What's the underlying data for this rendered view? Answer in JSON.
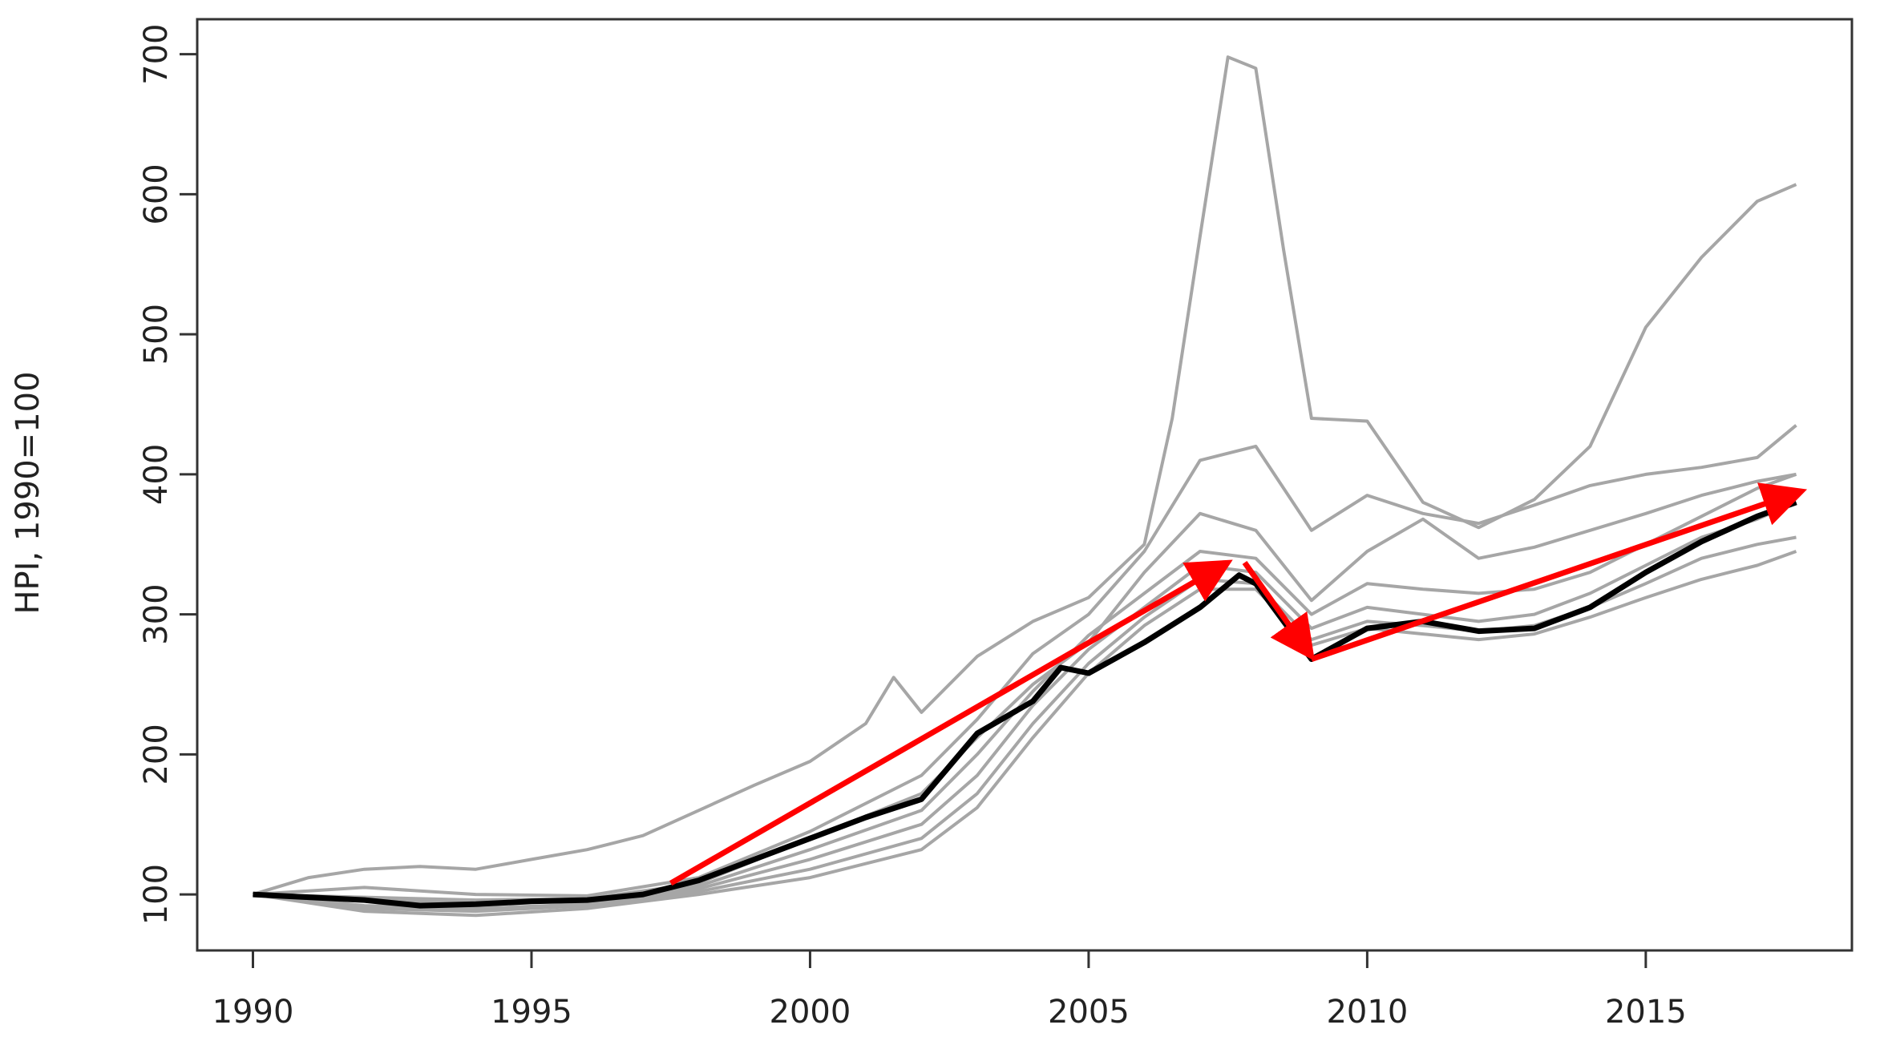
{
  "chart_data": {
    "type": "line",
    "title": "",
    "xlabel": "",
    "ylabel": "HPI, 1990=100",
    "xlim": [
      1989,
      2018.7
    ],
    "ylim": [
      60,
      725
    ],
    "x_ticks": [
      1990,
      1995,
      2000,
      2005,
      2010,
      2015
    ],
    "y_ticks": [
      100,
      200,
      300,
      400,
      500,
      600,
      700
    ],
    "grid": false,
    "legend": "none",
    "colors": {
      "regional": "#a6a6a6",
      "aggregate": "#000000",
      "arrows": "#ff0000"
    },
    "series": [
      {
        "role": "regional",
        "points": [
          [
            1990,
            100
          ],
          [
            1991,
            112
          ],
          [
            1992,
            118
          ],
          [
            1993,
            120
          ],
          [
            1994,
            118
          ],
          [
            1995,
            125
          ],
          [
            1996,
            132
          ],
          [
            1997,
            142
          ],
          [
            1998,
            160
          ],
          [
            1999,
            178
          ],
          [
            2000,
            195
          ],
          [
            2001,
            222
          ],
          [
            2001.5,
            255
          ],
          [
            2002,
            230
          ],
          [
            2003,
            270
          ],
          [
            2004,
            295
          ],
          [
            2005,
            312
          ],
          [
            2006,
            350
          ],
          [
            2006.5,
            440
          ],
          [
            2007,
            570
          ],
          [
            2007.5,
            698
          ],
          [
            2008,
            690
          ],
          [
            2008.5,
            560
          ],
          [
            2009,
            440
          ],
          [
            2010,
            438
          ],
          [
            2011,
            380
          ],
          [
            2012,
            362
          ],
          [
            2013,
            382
          ],
          [
            2014,
            420
          ],
          [
            2015,
            505
          ],
          [
            2016,
            555
          ],
          [
            2017,
            595
          ],
          [
            2017.7,
            607
          ]
        ]
      },
      {
        "role": "regional",
        "points": [
          [
            1990,
            100
          ],
          [
            1992,
            105
          ],
          [
            1994,
            100
          ],
          [
            1996,
            99
          ],
          [
            1998,
            112
          ],
          [
            2000,
            145
          ],
          [
            2002,
            185
          ],
          [
            2003,
            225
          ],
          [
            2004,
            272
          ],
          [
            2005,
            300
          ],
          [
            2006,
            345
          ],
          [
            2007,
            410
          ],
          [
            2008,
            420
          ],
          [
            2009,
            360
          ],
          [
            2010,
            385
          ],
          [
            2011,
            372
          ],
          [
            2012,
            365
          ],
          [
            2013,
            378
          ],
          [
            2014,
            392
          ],
          [
            2015,
            400
          ],
          [
            2016,
            405
          ],
          [
            2017,
            412
          ],
          [
            2017.7,
            435
          ]
        ]
      },
      {
        "role": "regional",
        "points": [
          [
            1990,
            100
          ],
          [
            1992,
            98
          ],
          [
            1994,
            96
          ],
          [
            1996,
            97
          ],
          [
            1998,
            108
          ],
          [
            2000,
            140
          ],
          [
            2002,
            172
          ],
          [
            2003,
            212
          ],
          [
            2004,
            250
          ],
          [
            2005,
            280
          ],
          [
            2006,
            330
          ],
          [
            2007,
            372
          ],
          [
            2008,
            360
          ],
          [
            2009,
            310
          ],
          [
            2010,
            345
          ],
          [
            2011,
            368
          ],
          [
            2012,
            340
          ],
          [
            2013,
            348
          ],
          [
            2014,
            360
          ],
          [
            2015,
            372
          ],
          [
            2016,
            385
          ],
          [
            2017,
            395
          ],
          [
            2017.7,
            400
          ]
        ]
      },
      {
        "role": "regional",
        "points": [
          [
            1990,
            100
          ],
          [
            1992,
            96
          ],
          [
            1994,
            94
          ],
          [
            1996,
            95
          ],
          [
            1998,
            106
          ],
          [
            2000,
            132
          ],
          [
            2002,
            160
          ],
          [
            2003,
            200
          ],
          [
            2004,
            245
          ],
          [
            2005,
            285
          ],
          [
            2006,
            315
          ],
          [
            2007,
            345
          ],
          [
            2008,
            340
          ],
          [
            2009,
            300
          ],
          [
            2010,
            322
          ],
          [
            2011,
            318
          ],
          [
            2012,
            315
          ],
          [
            2013,
            318
          ],
          [
            2014,
            330
          ],
          [
            2015,
            350
          ],
          [
            2016,
            370
          ],
          [
            2017,
            390
          ],
          [
            2017.7,
            400
          ]
        ]
      },
      {
        "role": "regional",
        "points": [
          [
            1990,
            100
          ],
          [
            1992,
            92
          ],
          [
            1994,
            90
          ],
          [
            1996,
            93
          ],
          [
            1998,
            104
          ],
          [
            2000,
            125
          ],
          [
            2002,
            150
          ],
          [
            2003,
            185
          ],
          [
            2004,
            235
          ],
          [
            2005,
            275
          ],
          [
            2006,
            305
          ],
          [
            2007,
            335
          ],
          [
            2008,
            330
          ],
          [
            2009,
            290
          ],
          [
            2010,
            305
          ],
          [
            2011,
            300
          ],
          [
            2012,
            295
          ],
          [
            2013,
            300
          ],
          [
            2014,
            315
          ],
          [
            2015,
            335
          ],
          [
            2016,
            355
          ],
          [
            2017,
            368
          ],
          [
            2017.7,
            380
          ]
        ]
      },
      {
        "role": "regional",
        "points": [
          [
            1990,
            100
          ],
          [
            1992,
            90
          ],
          [
            1994,
            88
          ],
          [
            1996,
            92
          ],
          [
            1998,
            102
          ],
          [
            2000,
            118
          ],
          [
            2002,
            140
          ],
          [
            2003,
            172
          ],
          [
            2004,
            222
          ],
          [
            2005,
            265
          ],
          [
            2006,
            298
          ],
          [
            2007,
            325
          ],
          [
            2008,
            322
          ],
          [
            2009,
            282
          ],
          [
            2010,
            295
          ],
          [
            2011,
            292
          ],
          [
            2012,
            288
          ],
          [
            2013,
            292
          ],
          [
            2014,
            305
          ],
          [
            2015,
            322
          ],
          [
            2016,
            340
          ],
          [
            2017,
            350
          ],
          [
            2017.7,
            355
          ]
        ]
      },
      {
        "role": "regional",
        "points": [
          [
            1990,
            100
          ],
          [
            1992,
            88
          ],
          [
            1994,
            85
          ],
          [
            1996,
            90
          ],
          [
            1998,
            100
          ],
          [
            2000,
            112
          ],
          [
            2002,
            132
          ],
          [
            2003,
            162
          ],
          [
            2004,
            212
          ],
          [
            2005,
            258
          ],
          [
            2006,
            292
          ],
          [
            2007,
            318
          ],
          [
            2008,
            318
          ],
          [
            2009,
            278
          ],
          [
            2010,
            290
          ],
          [
            2011,
            286
          ],
          [
            2012,
            282
          ],
          [
            2013,
            286
          ],
          [
            2014,
            298
          ],
          [
            2015,
            312
          ],
          [
            2016,
            325
          ],
          [
            2017,
            335
          ],
          [
            2017.7,
            345
          ]
        ]
      },
      {
        "role": "aggregate",
        "points": [
          [
            1990,
            100
          ],
          [
            1991,
            98
          ],
          [
            1992,
            96
          ],
          [
            1993,
            92
          ],
          [
            1994,
            93
          ],
          [
            1995,
            95
          ],
          [
            1996,
            96
          ],
          [
            1997,
            100
          ],
          [
            1998,
            110
          ],
          [
            1999,
            125
          ],
          [
            2000,
            140
          ],
          [
            2001,
            155
          ],
          [
            2002,
            168
          ],
          [
            2003,
            215
          ],
          [
            2004,
            238
          ],
          [
            2004.5,
            262
          ],
          [
            2005,
            258
          ],
          [
            2006,
            280
          ],
          [
            2007,
            305
          ],
          [
            2007.7,
            328
          ],
          [
            2008,
            322
          ],
          [
            2009,
            268
          ],
          [
            2010,
            290
          ],
          [
            2011,
            295
          ],
          [
            2012,
            288
          ],
          [
            2013,
            290
          ],
          [
            2014,
            305
          ],
          [
            2015,
            330
          ],
          [
            2016,
            352
          ],
          [
            2017,
            370
          ],
          [
            2017.7,
            380
          ]
        ]
      }
    ],
    "annotations": [
      {
        "type": "arrow",
        "from": [
          1997.5,
          108
        ],
        "to": [
          2007.5,
          337
        ]
      },
      {
        "type": "arrow",
        "from": [
          2007.8,
          337
        ],
        "to": [
          2009.0,
          270
        ]
      },
      {
        "type": "arrow",
        "from": [
          2009.0,
          268
        ],
        "to": [
          2017.8,
          388
        ]
      }
    ]
  }
}
